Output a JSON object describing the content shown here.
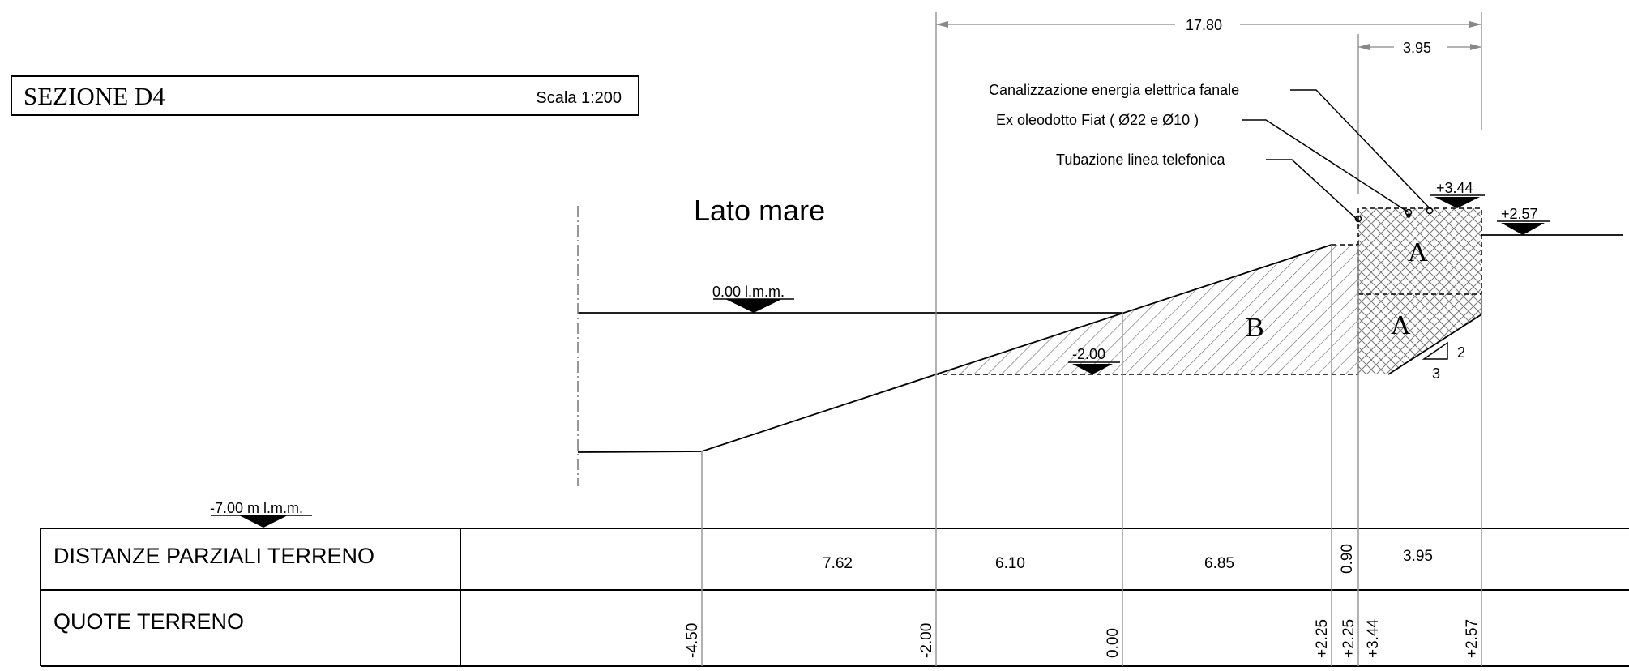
{
  "title": {
    "name": "SEZIONE D4",
    "scale": "Scala 1:200"
  },
  "side_label": "Lato mare",
  "levels": {
    "sea": "0.00 l.m.m.",
    "bottom": "-7.00 m l.m.m.",
    "toe": "-2.00",
    "crest": "+3.44",
    "land": "+2.57"
  },
  "dimensions": {
    "total": "17.80",
    "crest_width": "3.95"
  },
  "annotations": {
    "power": "Canalizzazione energia elettrica fanale",
    "oil": "Ex oleodotto Fiat ( Ø22 e Ø10 )",
    "phone": "Tubazione linea telefonica"
  },
  "zones": {
    "a_upper": "A",
    "a_lower": "A",
    "b": "B"
  },
  "slope": {
    "rise": "2",
    "run": "3"
  },
  "table": {
    "row1_label": "DISTANZE PARZIALI TERRENO",
    "row2_label": "QUOTE TERRENO",
    "distances": [
      "7.62",
      "6.10",
      "6.85",
      "0.90",
      "3.95"
    ],
    "elevations": [
      "-4.50",
      "-2.00",
      "0.00",
      "+2.25",
      "+2.25",
      "+3.44",
      "+2.57"
    ]
  }
}
